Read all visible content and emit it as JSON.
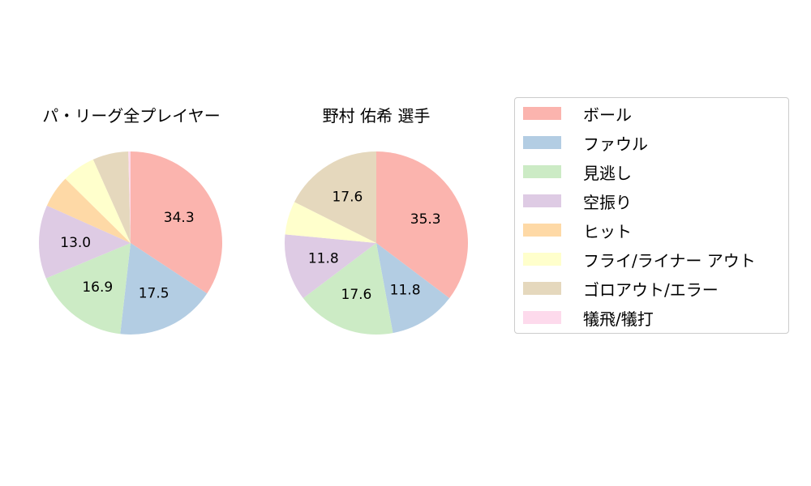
{
  "chart_data": [
    {
      "type": "pie",
      "title": "パ・リーグ全プレイヤー",
      "categories": [
        "ボール",
        "ファウル",
        "見逃し",
        "空振り",
        "ヒット",
        "フライ/ライナー アウト",
        "ゴロアウト/エラー",
        "犠飛/犠打"
      ],
      "values": [
        34.3,
        17.5,
        16.9,
        13.0,
        5.7,
        5.9,
        6.3,
        0.4
      ],
      "labels_shown": [
        "34.3",
        "17.5",
        "16.9",
        "13.0",
        "",
        "",
        "",
        ""
      ],
      "start_angle": 90,
      "direction": "clockwise"
    },
    {
      "type": "pie",
      "title": "野村 佑希  選手",
      "categories": [
        "ボール",
        "ファウル",
        "見逃し",
        "空振り",
        "ヒット",
        "フライ/ライナー アウト",
        "ゴロアウト/エラー",
        "犠飛/犠打"
      ],
      "values": [
        35.3,
        11.8,
        17.6,
        11.8,
        0,
        5.9,
        17.6,
        0
      ],
      "labels_shown": [
        "35.3",
        "11.8",
        "17.6",
        "11.8",
        "",
        "",
        "17.6",
        ""
      ],
      "start_angle": 90,
      "direction": "clockwise"
    }
  ],
  "legend": {
    "position": "right",
    "items": [
      {
        "label": "ボール",
        "color": "#fbb4ae"
      },
      {
        "label": "ファウル",
        "color": "#b3cde3"
      },
      {
        "label": "見逃し",
        "color": "#ccebc5"
      },
      {
        "label": "空振り",
        "color": "#decbe4"
      },
      {
        "label": "ヒット",
        "color": "#fed9a6"
      },
      {
        "label": "フライ/ライナー アウト",
        "color": "#ffffcc"
      },
      {
        "label": "ゴロアウト/エラー",
        "color": "#e5d8bd"
      },
      {
        "label": "犠飛/犠打",
        "color": "#fddaec"
      }
    ]
  },
  "titles": {
    "left": "パ・リーグ全プレイヤー",
    "right": "野村 佑希  選手"
  }
}
